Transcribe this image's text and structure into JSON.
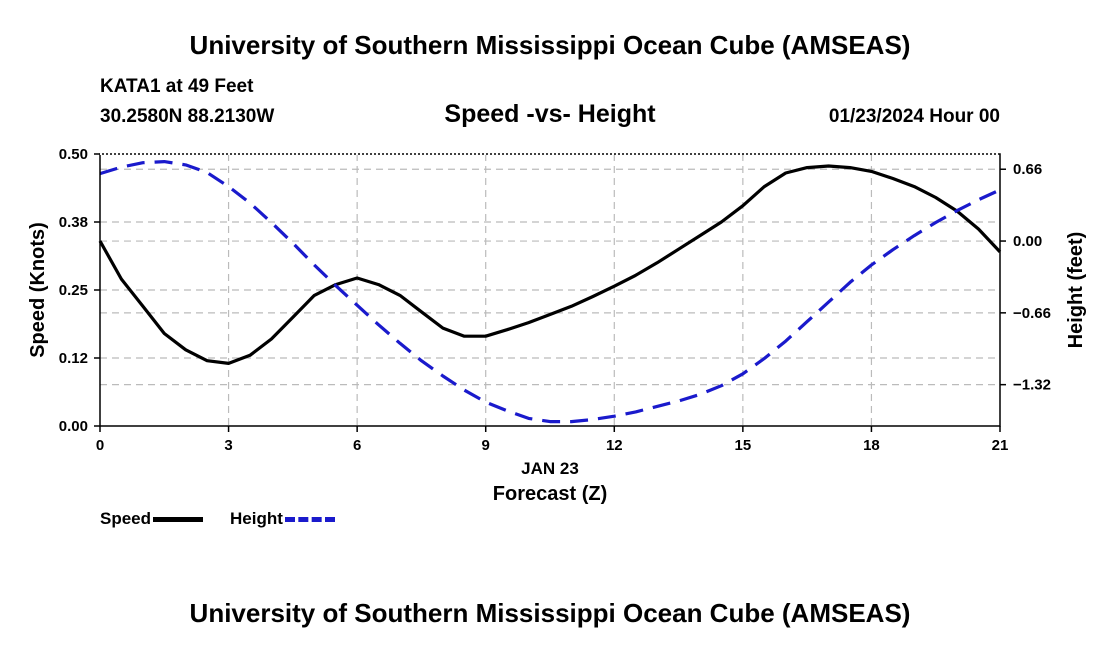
{
  "page": {
    "title_top": "University of Southern Mississippi Ocean Cube (AMSEAS)",
    "title_bottom": "University of Southern Mississippi Ocean Cube (AMSEAS)",
    "station": "KATA1 at 49 Feet",
    "coords": "30.2580N  88.2130W",
    "subtitle": "Speed -vs- Height",
    "datetime": "01/23/2024 Hour 00"
  },
  "chart_data": {
    "type": "line",
    "title": "Speed -vs- Height",
    "xlabel": "Forecast (Z)",
    "xlabel_date": "JAN 23",
    "ylabel_left": "Speed (Knots)",
    "ylabel_right": "Height (feet)",
    "x_ticks": [
      0,
      3,
      6,
      9,
      12,
      15,
      18,
      21
    ],
    "x_tick_labels": [
      "0",
      "3",
      "6",
      "9",
      "12",
      "15",
      "18",
      "21"
    ],
    "xlim": [
      0,
      21
    ],
    "y_left_ticks": [
      0.0,
      0.125,
      0.25,
      0.375,
      0.5
    ],
    "y_left_tick_labels": [
      "0.00",
      "0.12",
      "0.25",
      "0.38",
      "0.50"
    ],
    "ylim_left": [
      0,
      0.5
    ],
    "y_right_ticks": [
      0.66,
      0.0,
      -0.66,
      -1.32
    ],
    "y_right_tick_labels": [
      "0.66",
      "0.00",
      "−0.66",
      "−1.32"
    ],
    "ylim_right": [
      -1.7,
      0.8
    ],
    "grid": true,
    "series": [
      {
        "name": "Speed",
        "axis": "left",
        "color": "#000000",
        "style": "solid",
        "x": [
          0,
          0.5,
          1,
          1.5,
          2,
          2.5,
          3,
          3.5,
          4,
          4.5,
          5,
          5.5,
          6,
          6.5,
          7,
          7.5,
          8,
          8.5,
          9,
          9.5,
          10,
          10.5,
          11,
          11.5,
          12,
          12.5,
          13,
          13.5,
          14,
          14.5,
          15,
          15.5,
          16,
          16.5,
          17,
          17.5,
          18,
          18.5,
          19,
          19.5,
          20,
          20.5,
          21
        ],
        "values": [
          0.34,
          0.27,
          0.22,
          0.17,
          0.14,
          0.12,
          0.115,
          0.13,
          0.16,
          0.2,
          0.24,
          0.26,
          0.272,
          0.26,
          0.24,
          0.21,
          0.18,
          0.165,
          0.165,
          0.177,
          0.19,
          0.205,
          0.22,
          0.238,
          0.257,
          0.277,
          0.3,
          0.325,
          0.35,
          0.375,
          0.405,
          0.44,
          0.465,
          0.475,
          0.478,
          0.475,
          0.468,
          0.455,
          0.44,
          0.42,
          0.395,
          0.362,
          0.32
        ]
      },
      {
        "name": "Height",
        "axis": "right",
        "color": "#1a1acc",
        "style": "dashed",
        "x": [
          0,
          0.5,
          1,
          1.5,
          2,
          2.5,
          3,
          3.5,
          4,
          4.5,
          5,
          5.5,
          6,
          6.5,
          7,
          7.5,
          8,
          8.5,
          9,
          9.5,
          10,
          10.5,
          11,
          11.5,
          12,
          12.5,
          13,
          13.5,
          14,
          14.5,
          15,
          15.5,
          16,
          16.5,
          17,
          17.5,
          18,
          18.5,
          19,
          19.5,
          20,
          20.5,
          21
        ],
        "values": [
          0.62,
          0.68,
          0.72,
          0.73,
          0.7,
          0.63,
          0.5,
          0.35,
          0.17,
          -0.02,
          -0.22,
          -0.41,
          -0.59,
          -0.77,
          -0.94,
          -1.1,
          -1.24,
          -1.37,
          -1.48,
          -1.56,
          -1.63,
          -1.66,
          -1.66,
          -1.64,
          -1.61,
          -1.57,
          -1.52,
          -1.47,
          -1.41,
          -1.33,
          -1.22,
          -1.08,
          -0.92,
          -0.74,
          -0.56,
          -0.38,
          -0.22,
          -0.08,
          0.05,
          0.17,
          0.28,
          0.38,
          0.47
        ]
      }
    ],
    "legend": [
      {
        "label": "Speed",
        "color": "#000000",
        "style": "solid"
      },
      {
        "label": "Height",
        "color": "#1a1acc",
        "style": "dashed"
      }
    ]
  }
}
